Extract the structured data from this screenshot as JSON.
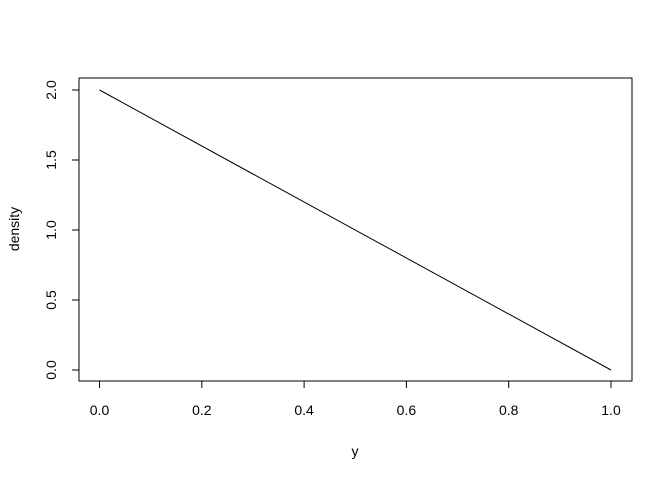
{
  "chart_data": {
    "type": "line",
    "title": "",
    "xlabel": "y",
    "ylabel": "density",
    "xlim": [
      0,
      1
    ],
    "ylim": [
      0,
      2
    ],
    "x_ticks": [
      "0.0",
      "0.2",
      "0.4",
      "0.6",
      "0.8",
      "1.0"
    ],
    "y_ticks": [
      "0.0",
      "0.5",
      "1.0",
      "1.5",
      "2.0"
    ],
    "grid": false,
    "series": [
      {
        "x": [
          0,
          1
        ],
        "y": [
          2,
          0
        ],
        "color": "#000000"
      }
    ]
  }
}
